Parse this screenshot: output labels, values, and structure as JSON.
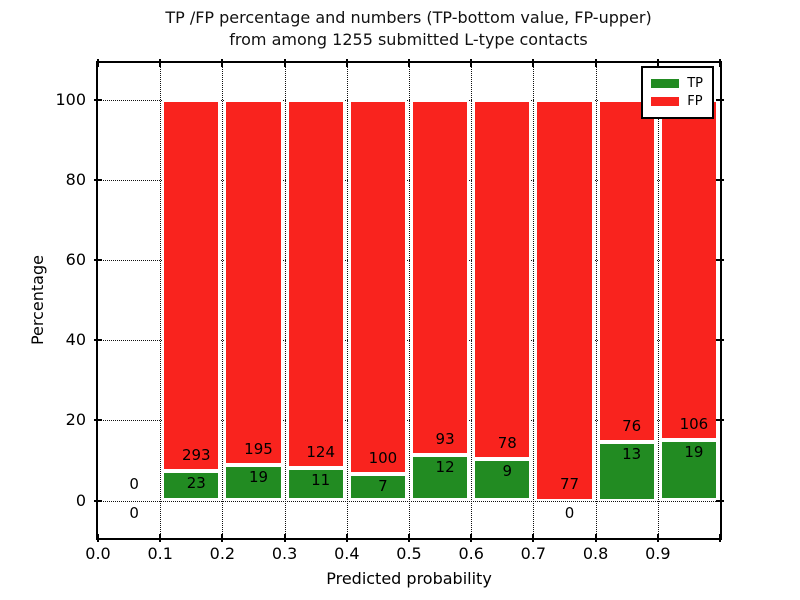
{
  "figure": {
    "title_line1": "TP /FP percentage and numbers (TP-bottom value, FP-upper)",
    "title_line2": "from among 1255 submitted L-type contacts"
  },
  "axes": {
    "xlabel": "Predicted probability",
    "ylabel": "Percentage",
    "x_tick_labels": [
      "0.0",
      "0.1",
      "0.2",
      "0.3",
      "0.4",
      "0.5",
      "0.6",
      "0.7",
      "0.8",
      "0.9"
    ],
    "x_tick_values": [
      0.0,
      0.1,
      0.2,
      0.3,
      0.4,
      0.5,
      0.6,
      0.7,
      0.8,
      0.9
    ],
    "y_tick_labels": [
      "0",
      "20",
      "40",
      "60",
      "80",
      "100"
    ],
    "y_tick_values": [
      0,
      20,
      40,
      60,
      80,
      100
    ]
  },
  "legend": {
    "items": [
      {
        "label": "TP",
        "color": "#228b22"
      },
      {
        "label": "FP",
        "color": "#f9231e"
      }
    ]
  },
  "chart_data": {
    "type": "bar",
    "stacked": true,
    "normalized_to_percent": true,
    "title": "TP /FP percentage and numbers (TP-bottom value, FP-upper) from among 1255 submitted L-type contacts",
    "xlabel": "Predicted probability",
    "ylabel": "Percentage",
    "xlim": [
      0.0,
      1.0
    ],
    "ylim": [
      -10,
      110
    ],
    "grid": true,
    "legend_position": "upper right",
    "total_submitted": 1255,
    "bin_width": 0.1,
    "bin_starts": [
      0.0,
      0.1,
      0.2,
      0.3,
      0.4,
      0.5,
      0.6,
      0.7,
      0.8,
      0.9
    ],
    "series": [
      {
        "name": "TP",
        "color": "#228b22",
        "counts": [
          0,
          23,
          19,
          11,
          7,
          12,
          9,
          0,
          13,
          19
        ]
      },
      {
        "name": "FP",
        "color": "#f9231e",
        "counts": [
          0,
          293,
          195,
          124,
          100,
          93,
          78,
          77,
          76,
          106
        ]
      }
    ],
    "label_rule": "FP count drawn just above TP/FP boundary, TP count just below boundary; zero-TP bins show 0 below the x-axis"
  }
}
